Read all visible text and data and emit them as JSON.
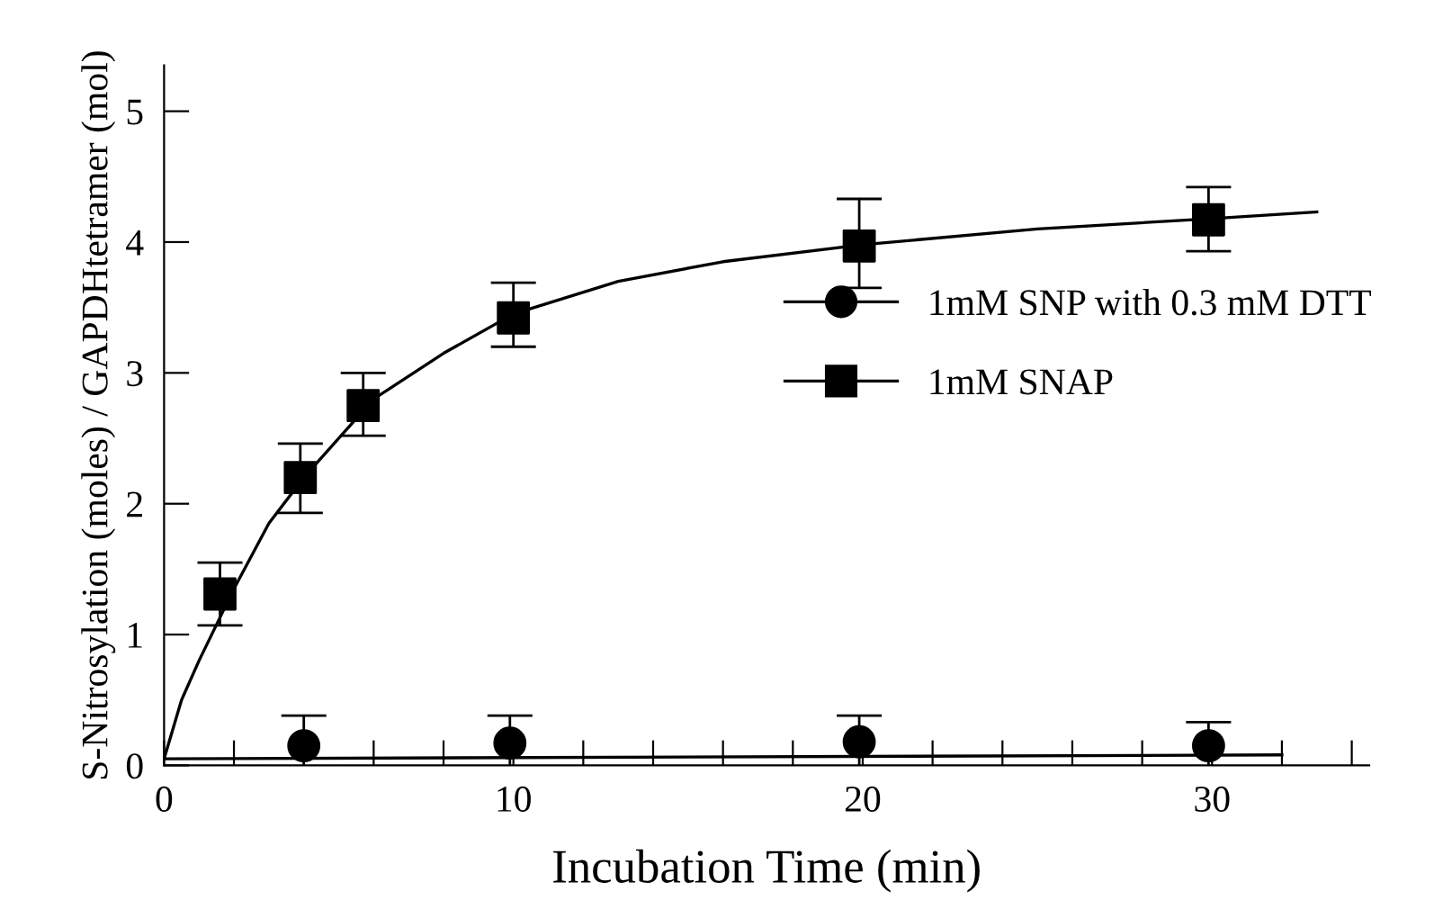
{
  "chart_data": {
    "type": "scatter",
    "xlabel": "Incubation Time (min)",
    "ylabel": "S-Nitrosylation (moles) / GAPDHtetramer (mol)",
    "xlim": [
      0,
      34.5
    ],
    "ylim": [
      0,
      5.35
    ],
    "xticks": [
      0,
      {
        "value": 2,
        "label": null
      },
      {
        "value": 4,
        "label": null
      },
      {
        "value": 6,
        "label": null
      },
      {
        "value": 8,
        "label": null
      },
      10,
      {
        "value": 12,
        "label": null
      },
      {
        "value": 14,
        "label": null
      },
      {
        "value": 16,
        "label": null
      },
      {
        "value": 18,
        "label": null
      },
      20,
      {
        "value": 22,
        "label": null
      },
      {
        "value": 24,
        "label": null
      },
      {
        "value": 26,
        "label": null
      },
      {
        "value": 28,
        "label": null
      },
      30,
      {
        "value": 32,
        "label": null
      },
      {
        "value": 34,
        "label": null
      }
    ],
    "yticks": [
      0,
      1,
      2,
      3,
      4,
      5
    ],
    "legend": "right",
    "grid": false,
    "series": [
      {
        "name": "1mM SNP with 0.3 mM DTT",
        "color": "#000000",
        "marker": "circle",
        "x": [
          4,
          9.9,
          19.9,
          29.9
        ],
        "values": [
          0.15,
          0.17,
          0.18,
          0.15
        ],
        "errors": [
          0.23,
          0.21,
          0.2,
          0.18
        ]
      },
      {
        "name": "1mM SNAP",
        "color": "#000000",
        "marker": "square",
        "x": [
          1.6,
          3.9,
          5.7,
          10,
          19.9,
          29.9
        ],
        "values": [
          1.31,
          2.2,
          2.75,
          3.42,
          3.97,
          4.17
        ],
        "errors": [
          [
            1.07,
            1.55
          ],
          [
            1.93,
            2.46
          ],
          [
            2.52,
            3.0
          ],
          [
            3.2,
            3.69
          ],
          [
            3.65,
            4.33
          ],
          [
            3.93,
            4.42
          ]
        ]
      },
      {
        "type": "line",
        "color": "#000000",
        "marker": "none",
        "x": [
          0,
          32
        ],
        "values": [
          0.05,
          0.08
        ]
      },
      {
        "type": "line",
        "color": "#000000",
        "marker": "none",
        "x": [
          0,
          0.5,
          1,
          2,
          3,
          4,
          6,
          8,
          10,
          13,
          16,
          20,
          25,
          30,
          33
        ],
        "values": [
          0.05,
          0.5,
          0.8,
          1.35,
          1.85,
          2.2,
          2.8,
          3.15,
          3.45,
          3.7,
          3.85,
          3.98,
          4.1,
          4.18,
          4.23
        ]
      }
    ]
  }
}
